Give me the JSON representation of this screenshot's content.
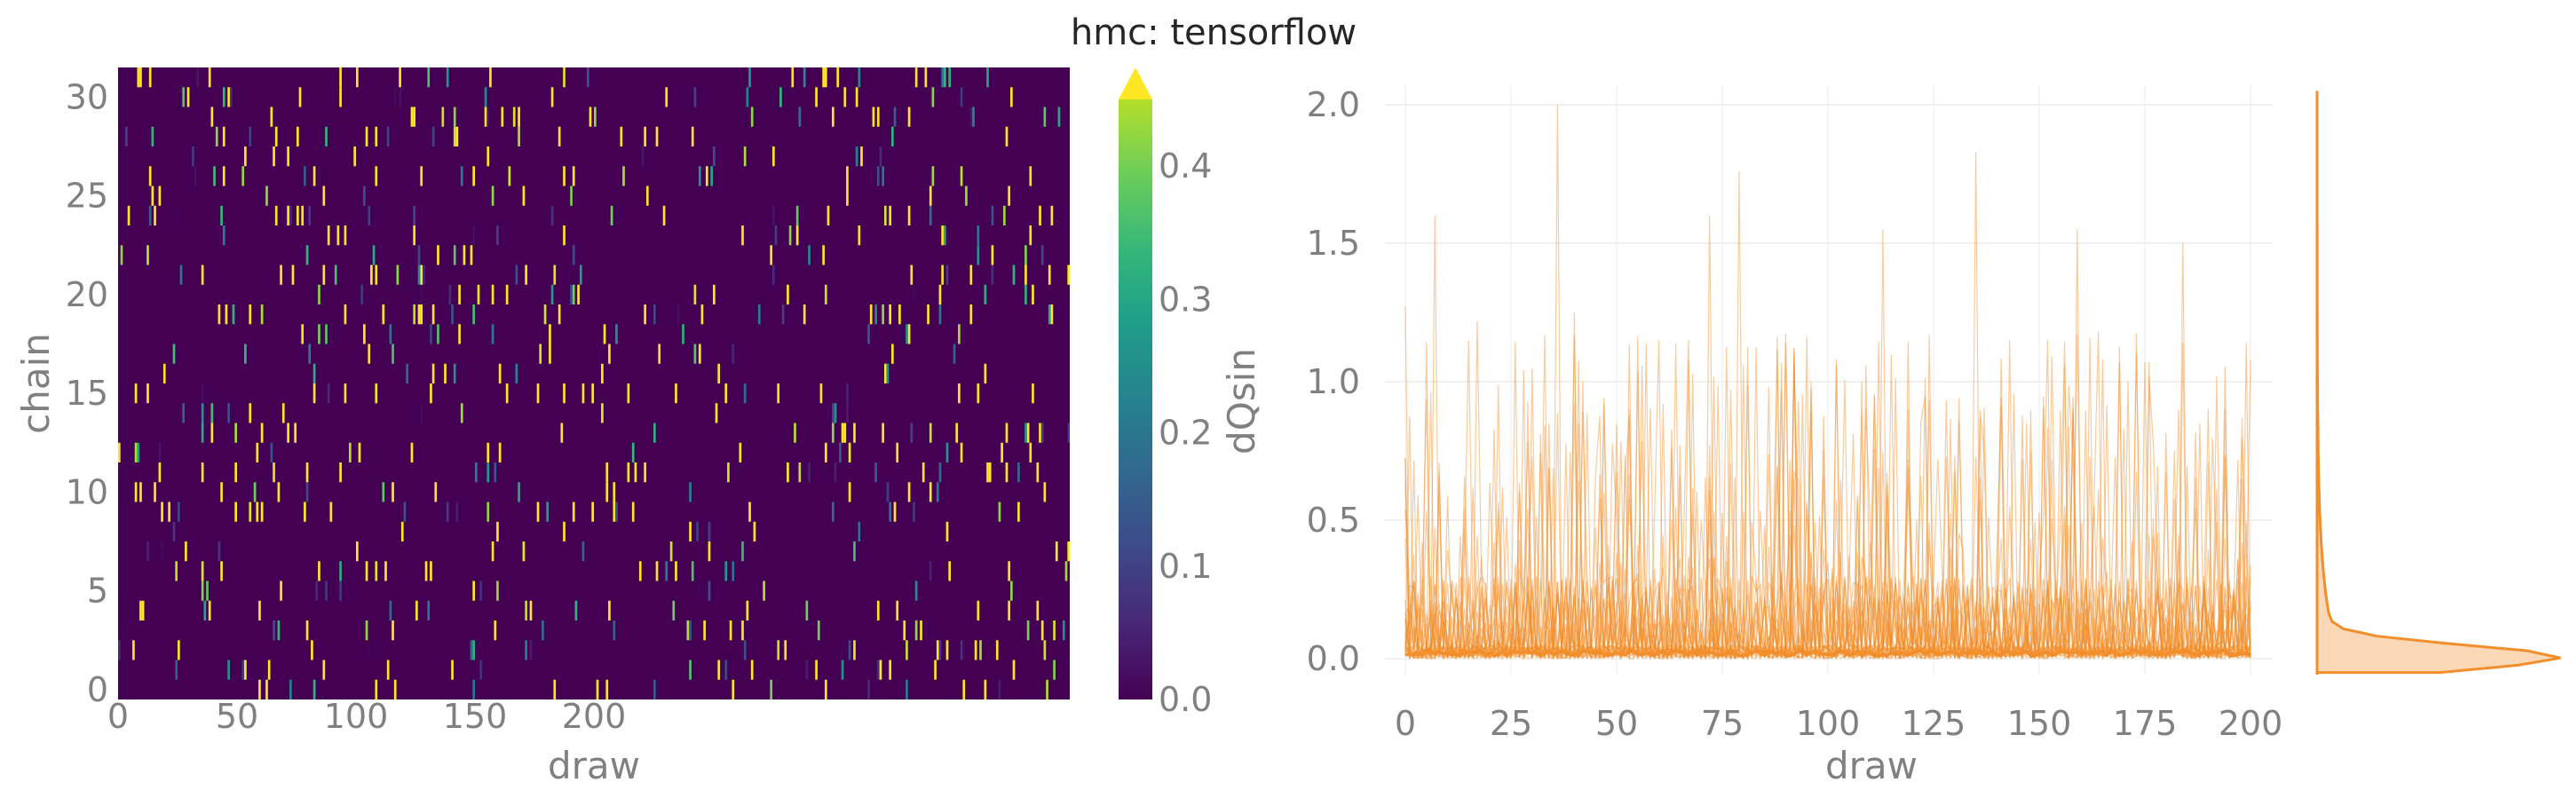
{
  "title": "hmc: tensorflow",
  "colors": {
    "viridis_low": "#440154",
    "viridis_mid": "#21918c",
    "viridis_high": "#fde725",
    "trace": "#f28e2b",
    "tick_text": "#808080"
  },
  "chart_data": [
    {
      "type": "heatmap",
      "xlabel": "draw",
      "ylabel": "chain",
      "x_ticks": [
        "0",
        "50",
        "100",
        "150",
        "200"
      ],
      "y_ticks": [
        "0",
        "5",
        "10",
        "15",
        "20",
        "25",
        "30"
      ],
      "xlim": [
        0,
        400
      ],
      "ylim": [
        0,
        32
      ],
      "n_chains": 32,
      "n_draws": 400,
      "colorbar": {
        "label": "dQsin",
        "ticks": [
          "0.0",
          "0.1",
          "0.2",
          "0.3",
          "0.4"
        ],
        "range": [
          0,
          0.45
        ],
        "extend": "max",
        "colormap": "viridis"
      },
      "values_note": "sparse cells: most values near 0.0, scattered cells up to ~0.45"
    },
    {
      "type": "line",
      "xlabel": "draw",
      "ylabel": "dQsin",
      "x_ticks": [
        "0",
        "25",
        "50",
        "75",
        "100",
        "125",
        "150",
        "175",
        "200"
      ],
      "y_ticks": [
        "0.0",
        "0.5",
        "1.0",
        "1.5",
        "2.0"
      ],
      "xlim": [
        0,
        200
      ],
      "ylim": [
        0,
        2.0
      ],
      "n_traces": 32,
      "peaks": [
        {
          "x": 0,
          "y": 1.27
        },
        {
          "x": 7,
          "y": 1.6
        },
        {
          "x": 17,
          "y": 1.22
        },
        {
          "x": 36,
          "y": 2.0
        },
        {
          "x": 40,
          "y": 1.25
        },
        {
          "x": 72,
          "y": 1.6
        },
        {
          "x": 79,
          "y": 1.76
        },
        {
          "x": 113,
          "y": 1.55
        },
        {
          "x": 135,
          "y": 1.83
        },
        {
          "x": 159,
          "y": 1.55
        },
        {
          "x": 184,
          "y": 1.5
        }
      ],
      "mean_level": 0.02,
      "marginal": "kde density on right, concentrated near 0.0"
    }
  ]
}
